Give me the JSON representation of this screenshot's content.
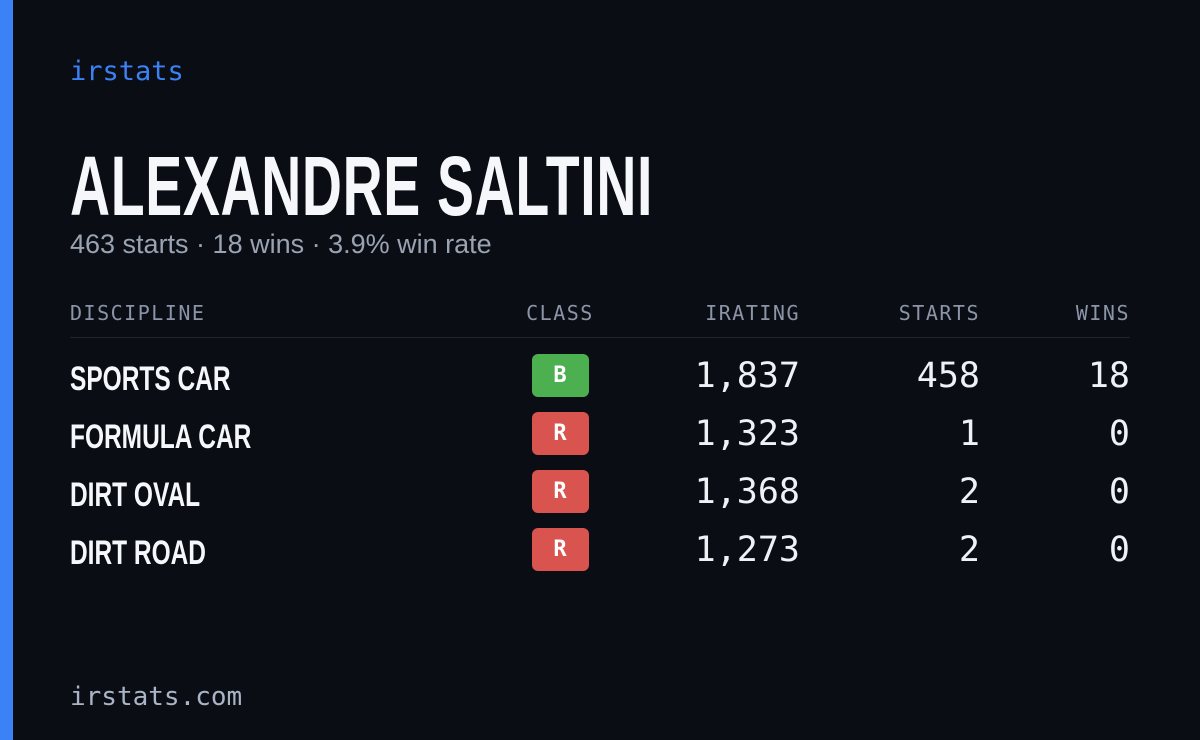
{
  "brand": "irstats",
  "profile": {
    "name": "ALEXANDRE SALTINI",
    "subtitle": "463 starts · 18 wins · 3.9% win rate"
  },
  "table": {
    "headers": [
      "DISCIPLINE",
      "CLASS",
      "IRATING",
      "STARTS",
      "WINS"
    ],
    "rows": [
      [
        "SPORTS CAR",
        "B",
        "1,837",
        "458",
        "18"
      ],
      [
        "FORMULA CAR",
        "R",
        "1,323",
        "1",
        "0"
      ],
      [
        "DIRT OVAL",
        "R",
        "1,368",
        "2",
        "0"
      ],
      [
        "DIRT ROAD",
        "R",
        "1,273",
        "2",
        "0"
      ]
    ],
    "class_colors": {
      "B": "#4caf50",
      "R": "#d9534f"
    }
  },
  "footer": "irstats.com"
}
